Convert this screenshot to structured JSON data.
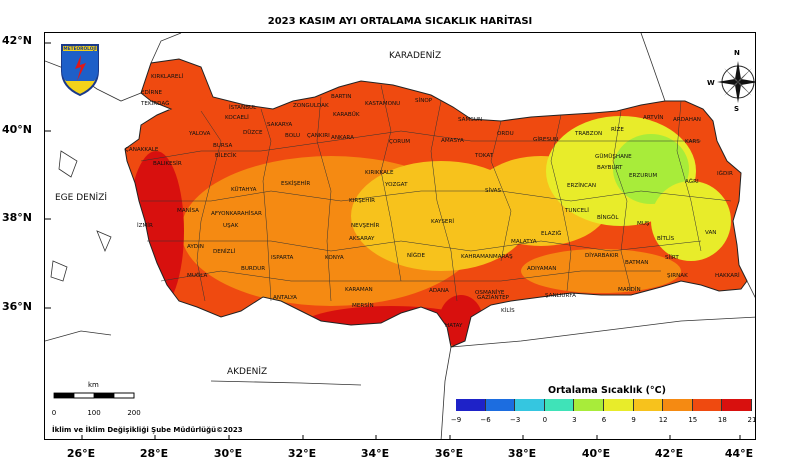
{
  "map": {
    "title": "2023 KASIM AYI ORTALAMA SICAKLIK HARİTASI",
    "credit": "İklim ve İklim Değişikliği Şube Müdürlüğü©2023",
    "logo_text": "METEOROLOJİ",
    "seas": {
      "north": "KARADENİZ",
      "west": "EGE DENİZİ",
      "south": "AKDENİZ"
    },
    "lat_labels": [
      "42°N",
      "40°N",
      "38°N",
      "36°N"
    ],
    "lon_labels": [
      "26°E",
      "28°E",
      "30°E",
      "32°E",
      "34°E",
      "36°E",
      "38°E",
      "40°E",
      "42°E",
      "44°E"
    ],
    "compass": {
      "n": "N",
      "s": "S",
      "e": "E",
      "w": "W"
    },
    "scale_bar": {
      "unit": "km",
      "ticks": [
        "0",
        "100",
        "200"
      ]
    },
    "legend": {
      "title": "Ortalama Sıcaklık (°C)",
      "ticks": [
        "−9",
        "−6",
        "−3",
        "0",
        "3",
        "6",
        "9",
        "12",
        "15",
        "18",
        "21"
      ],
      "colors": [
        "#1e22c8",
        "#1c6de0",
        "#35c6e0",
        "#3fe3b8",
        "#a8ec3a",
        "#e8ec2a",
        "#f7c21c",
        "#f58a12",
        "#ef4a10",
        "#d8100e"
      ]
    },
    "provinces": [
      {
        "name": "KIRKLARELİ"
      },
      {
        "name": "EDİRNE"
      },
      {
        "name": "TEKİRDAĞ"
      },
      {
        "name": "İSTANBUL"
      },
      {
        "name": "KOCAELİ"
      },
      {
        "name": "SAKARYA"
      },
      {
        "name": "DÜZCE"
      },
      {
        "name": "ZONGULDAK"
      },
      {
        "name": "BARTIN"
      },
      {
        "name": "KASTAMONU"
      },
      {
        "name": "SİNOP"
      },
      {
        "name": "KARABÜK"
      },
      {
        "name": "SAMSUN"
      },
      {
        "name": "ORDU"
      },
      {
        "name": "GİRESUN"
      },
      {
        "name": "TRABZON"
      },
      {
        "name": "RİZE"
      },
      {
        "name": "ARTVİN"
      },
      {
        "name": "ARDAHAN"
      },
      {
        "name": "KARS"
      },
      {
        "name": "IĞDIR"
      },
      {
        "name": "AĞRI"
      },
      {
        "name": "ERZURUM"
      },
      {
        "name": "GÜMÜŞHANE"
      },
      {
        "name": "BAYBURT"
      },
      {
        "name": "ERZİNCAN"
      },
      {
        "name": "TUNCELİ"
      },
      {
        "name": "BİNGÖL"
      },
      {
        "name": "MUŞ"
      },
      {
        "name": "BİTLİS"
      },
      {
        "name": "VAN"
      },
      {
        "name": "HAKKARİ"
      },
      {
        "name": "ŞIRNAK"
      },
      {
        "name": "SİİRT"
      },
      {
        "name": "BATMAN"
      },
      {
        "name": "MARDİN"
      },
      {
        "name": "DİYARBAKIR"
      },
      {
        "name": "ELAZIĞ"
      },
      {
        "name": "MALATYA"
      },
      {
        "name": "ADIYAMAN"
      },
      {
        "name": "ŞANLIURFA"
      },
      {
        "name": "GAZİANTEP"
      },
      {
        "name": "KİLİS"
      },
      {
        "name": "HATAY"
      },
      {
        "name": "OSMANİYE"
      },
      {
        "name": "ADANA"
      },
      {
        "name": "MERSİN"
      },
      {
        "name": "KAHRAMANMARAŞ"
      },
      {
        "name": "KAYSERİ"
      },
      {
        "name": "SİVAS"
      },
      {
        "name": "TOKAT"
      },
      {
        "name": "AMASYA"
      },
      {
        "name": "ÇORUM"
      },
      {
        "name": "YOZGAT"
      },
      {
        "name": "KIRIKKALE"
      },
      {
        "name": "ANKARA"
      },
      {
        "name": "ÇANKIRI"
      },
      {
        "name": "BOLU"
      },
      {
        "name": "KIRŞEHİR"
      },
      {
        "name": "NEVŞEHİR"
      },
      {
        "name": "AKSARAY"
      },
      {
        "name": "NİĞDE"
      },
      {
        "name": "KONYA"
      },
      {
        "name": "KARAMAN"
      },
      {
        "name": "ANTALYA"
      },
      {
        "name": "BURDUR"
      },
      {
        "name": "ISPARTA"
      },
      {
        "name": "DENİZLİ"
      },
      {
        "name": "MUĞLA"
      },
      {
        "name": "AYDIN"
      },
      {
        "name": "İZMİR"
      },
      {
        "name": "MANİSA"
      },
      {
        "name": "UŞAK"
      },
      {
        "name": "AFYONKARAHİSAR"
      },
      {
        "name": "KÜTAHYA"
      },
      {
        "name": "ESKİŞEHİR"
      },
      {
        "name": "BİLECİK"
      },
      {
        "name": "BURSA"
      },
      {
        "name": "BALIKESİR"
      },
      {
        "name": "ÇANAKKALE"
      },
      {
        "name": "YALOVA"
      }
    ]
  }
}
